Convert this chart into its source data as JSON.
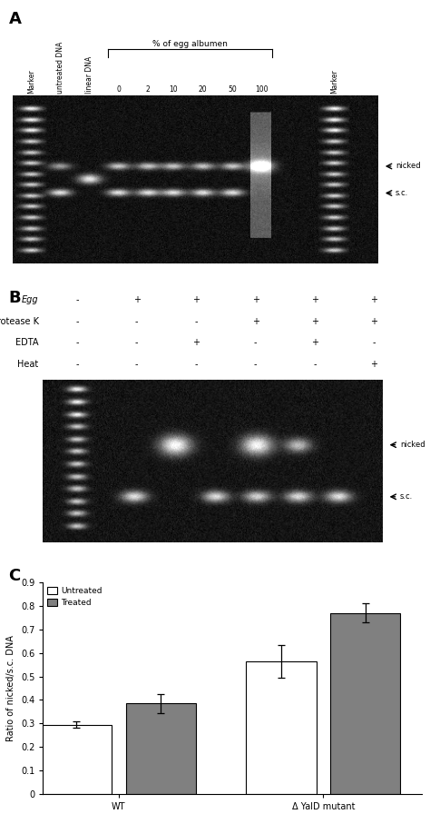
{
  "panel_A": {
    "label": "A",
    "brace_label": "% of egg albumen",
    "col_labels": [
      "Marker",
      "untreated DNA",
      "linear DNA",
      "0",
      "2",
      "10",
      "20",
      "50",
      "100",
      "Marker"
    ],
    "col_rotations": [
      90,
      90,
      90,
      0,
      0,
      0,
      0,
      0,
      0,
      90
    ],
    "arrow_labels": [
      "nicked",
      "s.c."
    ]
  },
  "panel_B": {
    "label": "B",
    "row_labels": [
      "Egg",
      "Protease K",
      "EDTA",
      "Heat"
    ],
    "row_signs": [
      [
        "-",
        "+",
        "+",
        "+",
        "+",
        "+"
      ],
      [
        "-",
        "-",
        "-",
        "+",
        "+",
        "+"
      ],
      [
        "-",
        "-",
        "+",
        "-",
        "+",
        "-"
      ],
      [
        "-",
        "-",
        "-",
        "-",
        "-",
        "+"
      ]
    ],
    "arrow_labels": [
      "nicked",
      "s.c."
    ]
  },
  "panel_C": {
    "label": "C",
    "groups": [
      "WT",
      "Δ YalD mutant"
    ],
    "series": [
      "Untreated",
      "Treated"
    ],
    "values": [
      [
        0.295,
        0.385
      ],
      [
        0.565,
        0.77
      ]
    ],
    "errors": [
      [
        0.015,
        0.04
      ],
      [
        0.07,
        0.04
      ]
    ],
    "bar_colors": [
      "#ffffff",
      "#808080"
    ],
    "ylabel": "Ratio of nicked/s.c. DNA",
    "ylim": [
      0,
      0.9
    ],
    "yticks": [
      0,
      0.1,
      0.2,
      0.3,
      0.4,
      0.5,
      0.6,
      0.7,
      0.8,
      0.9
    ],
    "legend_labels": [
      "Untreated",
      "Treated"
    ]
  }
}
